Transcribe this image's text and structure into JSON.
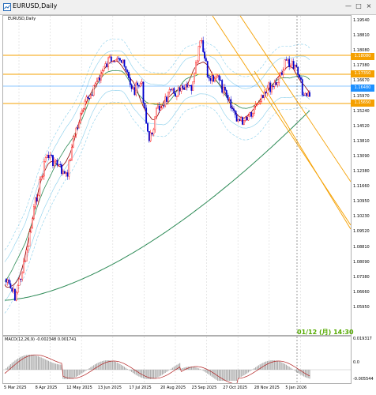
{
  "window": {
    "title": "EURUSD,Daily",
    "buttons": [
      "—",
      "□",
      "×"
    ]
  },
  "chart": {
    "symbol_label": "EURUSD,Daily",
    "timestamp_stamp": "01/12 (月) 14:30",
    "price_ticks": [
      "1.19540",
      "1.18810",
      "1.18080",
      "1.17380",
      "1.16670",
      "1.15970",
      "1.15240",
      "1.14520",
      "1.13810",
      "1.13090",
      "1.12380",
      "1.11660",
      "1.10950",
      "1.10230",
      "1.09520",
      "1.08810",
      "1.08090",
      "1.07380",
      "1.06660",
      "1.05950"
    ],
    "price_labels": [
      {
        "text": "1.18080",
        "color": "#f5a000"
      },
      {
        "text": "1.17350",
        "color": "#f5a000"
      },
      {
        "text": "1.16480",
        "color": "#1e90ff"
      },
      {
        "text": "1.15650",
        "color": "#f5a000"
      }
    ],
    "date_labels": [
      "5 Mar 2025",
      "8 Apr 2025",
      "12 May 2025",
      "13 Jun 2025",
      "17 Jul 2025",
      "20 Aug 2025",
      "23 Sep 2025",
      "27 Oct 2025",
      "28 Nov 2025",
      "5 Jan 2026"
    ],
    "colors": {
      "bull": "#ff0000",
      "bear": "#0000cc",
      "ma_short": "#8b0000",
      "ma_mid": "#2e8b57",
      "ma_long": "#2e8b57",
      "band": "#87ceeb",
      "hline": "#f5a000",
      "trend": "#f5a000"
    }
  },
  "macd": {
    "label": "MACD(12,26,9) -0.002348 0.001741",
    "ticks": [
      "0.019317",
      "0.0",
      "-0.005544"
    ]
  }
}
